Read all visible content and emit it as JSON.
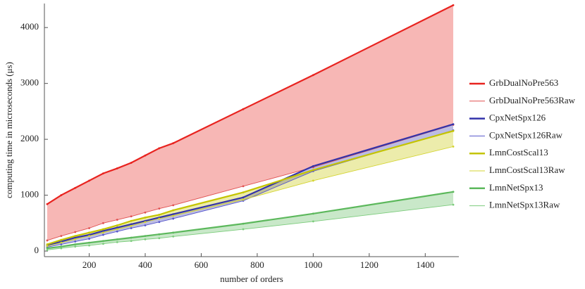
{
  "chart_data": {
    "type": "line",
    "xlabel": "number of orders",
    "ylabel": "computing time in microseconds (μs)",
    "x": [
      50,
      100,
      150,
      200,
      250,
      300,
      350,
      400,
      450,
      500,
      750,
      1000,
      1500
    ],
    "series": [
      {
        "name": "GrbDualNoPre563",
        "color": "#e8231f",
        "values": [
          840,
          1000,
          1130,
          1260,
          1390,
          1480,
          1580,
          1710,
          1840,
          1930,
          2540,
          3150,
          4400
        ]
      },
      {
        "name": "GrbDualNoPre563Raw",
        "color": "#e05050",
        "values": [
          190,
          270,
          340,
          410,
          500,
          560,
          620,
          690,
          760,
          820,
          1160,
          1500,
          2260
        ]
      },
      {
        "name": "CpxNetSpx126",
        "color": "#3333aa",
        "values": [
          100,
          170,
          240,
          290,
          360,
          420,
          480,
          540,
          600,
          660,
          960,
          1520,
          2270
        ]
      },
      {
        "name": "CpxNetSpx126Raw",
        "color": "#5555cc",
        "values": [
          70,
          120,
          170,
          220,
          290,
          350,
          410,
          460,
          520,
          580,
          900,
          1430,
          2160
        ]
      },
      {
        "name": "LmnCostScal13",
        "color": "#c4c400",
        "values": [
          120,
          200,
          270,
          330,
          390,
          460,
          540,
          600,
          650,
          730,
          1050,
          1450,
          2150
        ]
      },
      {
        "name": "LmnCostScal13Raw",
        "color": "#d4d430",
        "values": [
          90,
          150,
          210,
          270,
          330,
          390,
          450,
          520,
          580,
          630,
          920,
          1260,
          1870
        ]
      },
      {
        "name": "LmnNetSpx13",
        "color": "#5cb85c",
        "values": [
          50,
          80,
          120,
          150,
          180,
          210,
          240,
          270,
          300,
          330,
          490,
          670,
          1060
        ]
      },
      {
        "name": "LmnNetSpx13Raw",
        "color": "#7ccc7c",
        "values": [
          20,
          50,
          80,
          100,
          130,
          160,
          180,
          210,
          230,
          260,
          390,
          530,
          830
        ]
      }
    ],
    "xlim": [
      40,
      1520
    ],
    "ylim": [
      -100,
      4430
    ],
    "xticks": [
      200,
      400,
      600,
      800,
      1000,
      1200,
      1400
    ],
    "yticks": [
      0,
      1000,
      2000,
      3000,
      4000
    ],
    "legend": "right"
  }
}
